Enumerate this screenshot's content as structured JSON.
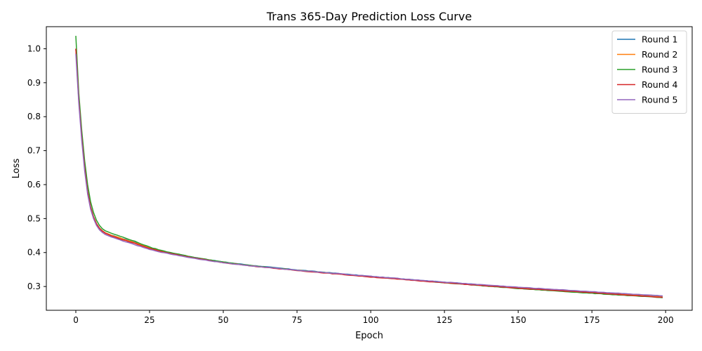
{
  "chart_data": {
    "type": "line",
    "title": "Trans 365-Day Prediction Loss Curve",
    "xlabel": "Epoch",
    "ylabel": "Loss",
    "xlim": [
      -10,
      209
    ],
    "ylim": [
      0.23,
      1.065
    ],
    "xticks": [
      0,
      25,
      50,
      75,
      100,
      125,
      150,
      175,
      200
    ],
    "yticks": [
      0.3,
      0.4,
      0.5,
      0.6,
      0.7,
      0.8,
      0.9,
      1.0
    ],
    "grid": false,
    "legend_position": "upper right",
    "x_range": [
      0,
      199
    ],
    "series": [
      {
        "name": "Round 1",
        "color": "#1f77b4",
        "points": [
          [
            0,
            1.0
          ],
          [
            1,
            0.85
          ],
          [
            2,
            0.74
          ],
          [
            3,
            0.65
          ],
          [
            4,
            0.58
          ],
          [
            5,
            0.535
          ],
          [
            6,
            0.505
          ],
          [
            7,
            0.485
          ],
          [
            8,
            0.472
          ],
          [
            9,
            0.464
          ],
          [
            10,
            0.458
          ],
          [
            12,
            0.451
          ],
          [
            15,
            0.443
          ],
          [
            20,
            0.43
          ],
          [
            25,
            0.415
          ],
          [
            30,
            0.403
          ],
          [
            40,
            0.386
          ],
          [
            50,
            0.372
          ],
          [
            60,
            0.362
          ],
          [
            75,
            0.349
          ],
          [
            100,
            0.33
          ],
          [
            125,
            0.313
          ],
          [
            150,
            0.297
          ],
          [
            175,
            0.284
          ],
          [
            199,
            0.272
          ]
        ]
      },
      {
        "name": "Round 2",
        "color": "#ff7f0e",
        "points": [
          [
            0,
            1.0
          ],
          [
            1,
            0.85
          ],
          [
            2,
            0.74
          ],
          [
            3,
            0.65
          ],
          [
            4,
            0.58
          ],
          [
            5,
            0.535
          ],
          [
            6,
            0.505
          ],
          [
            7,
            0.485
          ],
          [
            8,
            0.472
          ],
          [
            9,
            0.464
          ],
          [
            10,
            0.458
          ],
          [
            12,
            0.451
          ],
          [
            15,
            0.443
          ],
          [
            20,
            0.429
          ],
          [
            25,
            0.414
          ],
          [
            30,
            0.402
          ],
          [
            40,
            0.385
          ],
          [
            50,
            0.371
          ],
          [
            60,
            0.361
          ],
          [
            75,
            0.348
          ],
          [
            100,
            0.329
          ],
          [
            125,
            0.312
          ],
          [
            150,
            0.295
          ],
          [
            175,
            0.282
          ],
          [
            199,
            0.269
          ]
        ]
      },
      {
        "name": "Round 3",
        "color": "#2ca02c",
        "points": [
          [
            0,
            1.038
          ],
          [
            1,
            0.87
          ],
          [
            2,
            0.76
          ],
          [
            3,
            0.67
          ],
          [
            4,
            0.6
          ],
          [
            5,
            0.55
          ],
          [
            6,
            0.518
          ],
          [
            7,
            0.495
          ],
          [
            8,
            0.48
          ],
          [
            9,
            0.47
          ],
          [
            10,
            0.464
          ],
          [
            12,
            0.457
          ],
          [
            15,
            0.448
          ],
          [
            20,
            0.433
          ],
          [
            25,
            0.416
          ],
          [
            30,
            0.404
          ],
          [
            40,
            0.386
          ],
          [
            50,
            0.372
          ],
          [
            60,
            0.361
          ],
          [
            75,
            0.348
          ],
          [
            100,
            0.329
          ],
          [
            125,
            0.311
          ],
          [
            150,
            0.294
          ],
          [
            175,
            0.28
          ],
          [
            199,
            0.267
          ]
        ]
      },
      {
        "name": "Round 4",
        "color": "#d62728",
        "points": [
          [
            0,
            1.0
          ],
          [
            1,
            0.85
          ],
          [
            2,
            0.74
          ],
          [
            3,
            0.65
          ],
          [
            4,
            0.58
          ],
          [
            5,
            0.535
          ],
          [
            6,
            0.505
          ],
          [
            7,
            0.485
          ],
          [
            8,
            0.472
          ],
          [
            9,
            0.463
          ],
          [
            10,
            0.457
          ],
          [
            12,
            0.449
          ],
          [
            15,
            0.44
          ],
          [
            20,
            0.427
          ],
          [
            25,
            0.412
          ],
          [
            30,
            0.401
          ],
          [
            40,
            0.384
          ],
          [
            50,
            0.37
          ],
          [
            60,
            0.36
          ],
          [
            75,
            0.347
          ],
          [
            100,
            0.328
          ],
          [
            125,
            0.311
          ],
          [
            150,
            0.295
          ],
          [
            175,
            0.282
          ],
          [
            199,
            0.268
          ]
        ]
      },
      {
        "name": "Round 5",
        "color": "#9467bd",
        "points": [
          [
            0,
            0.985
          ],
          [
            1,
            0.84
          ],
          [
            2,
            0.73
          ],
          [
            3,
            0.64
          ],
          [
            4,
            0.572
          ],
          [
            5,
            0.528
          ],
          [
            6,
            0.5
          ],
          [
            7,
            0.48
          ],
          [
            8,
            0.467
          ],
          [
            9,
            0.459
          ],
          [
            10,
            0.453
          ],
          [
            12,
            0.446
          ],
          [
            15,
            0.437
          ],
          [
            20,
            0.423
          ],
          [
            25,
            0.409
          ],
          [
            30,
            0.399
          ],
          [
            40,
            0.383
          ],
          [
            50,
            0.37
          ],
          [
            60,
            0.36
          ],
          [
            75,
            0.348
          ],
          [
            100,
            0.33
          ],
          [
            125,
            0.313
          ],
          [
            150,
            0.298
          ],
          [
            175,
            0.285
          ],
          [
            199,
            0.272
          ]
        ]
      }
    ]
  }
}
